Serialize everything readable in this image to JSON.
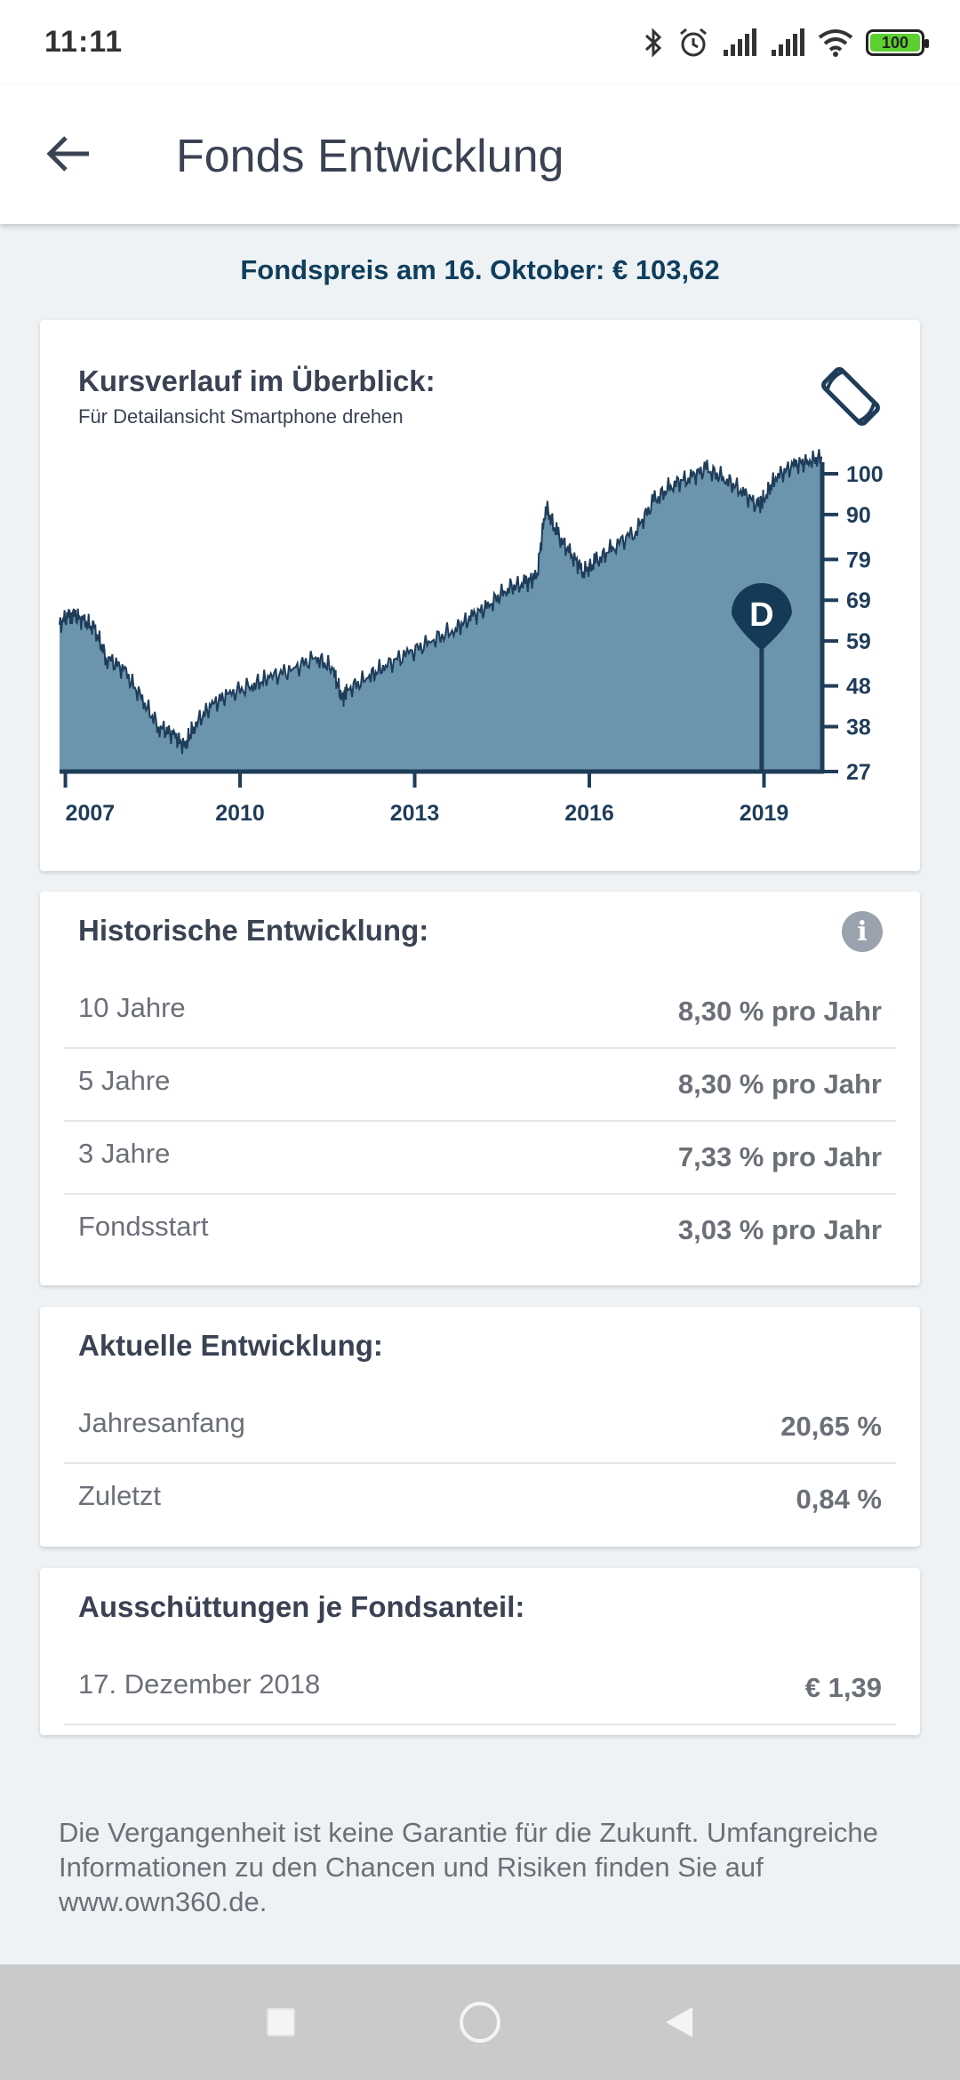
{
  "status": {
    "time": "11:11",
    "battery": "100"
  },
  "header": {
    "title": "Fonds Entwicklung"
  },
  "price_line": "Fondspreis am 16. Oktober: € 103,62",
  "overview": {
    "title": "Kursverlauf im Überblick:",
    "subtitle": "Für Detailansicht Smartphone drehen",
    "marker_label": "D"
  },
  "chart_data": {
    "type": "area",
    "x_ticks": [
      "2007",
      "2010",
      "2013",
      "2016",
      "2019"
    ],
    "y_ticks": [
      "100",
      "90",
      "79",
      "69",
      "59",
      "48",
      "38",
      "27"
    ],
    "ylim": [
      27,
      105
    ],
    "xlim": [
      2006.9,
      2020.0
    ],
    "marker": {
      "label": "D",
      "x": 2018.96
    },
    "color": "#6b95ad",
    "line_color": "#1f3d5a",
    "x": [
      2006.9,
      2007.1,
      2007.3,
      2007.5,
      2007.7,
      2008.0,
      2008.3,
      2008.6,
      2008.85,
      2009.05,
      2009.2,
      2009.5,
      2009.8,
      2010.2,
      2010.5,
      2010.9,
      2011.3,
      2011.6,
      2011.75,
      2011.85,
      2012.2,
      2012.5,
      2012.9,
      2013.3,
      2013.7,
      2014.0,
      2014.3,
      2014.6,
      2014.9,
      2015.1,
      2015.25,
      2015.45,
      2015.7,
      2015.9,
      2016.1,
      2016.4,
      2016.8,
      2017.1,
      2017.4,
      2017.7,
      2018.0,
      2018.3,
      2018.6,
      2018.9,
      2019.0,
      2019.2,
      2019.5,
      2019.75,
      2020.0
    ],
    "y": [
      63,
      66,
      64,
      62,
      55,
      52,
      45,
      38,
      36,
      33,
      38,
      43,
      46,
      48,
      50,
      52,
      55,
      52,
      45,
      47,
      50,
      53,
      56,
      59,
      62,
      65,
      68,
      72,
      73,
      75,
      92,
      85,
      80,
      76,
      78,
      82,
      86,
      93,
      97,
      99,
      101,
      99,
      96,
      92,
      94,
      99,
      102,
      103,
      104
    ]
  },
  "historical": {
    "title": "Historische Entwicklung:",
    "rows": [
      {
        "label": "10 Jahre",
        "value": "8,30 % pro Jahr"
      },
      {
        "label": "5 Jahre",
        "value": "8,30 % pro Jahr"
      },
      {
        "label": "3 Jahre",
        "value": "7,33 % pro Jahr"
      },
      {
        "label": "Fondsstart",
        "value": "3,03 % pro Jahr"
      }
    ]
  },
  "current": {
    "title": "Aktuelle Entwicklung:",
    "rows": [
      {
        "label": "Jahresanfang",
        "value": "20,65 %"
      },
      {
        "label": "Zuletzt",
        "value": "0,84 %"
      }
    ]
  },
  "distributions": {
    "title": "Ausschüttungen je Fondsanteil:",
    "rows": [
      {
        "label": "17. Dezember 2018",
        "value": "€ 1,39"
      }
    ]
  },
  "disclaimer": "Die Vergangenheit ist keine Garantie für die Zukunft. Umfangreiche Informationen zu den Chancen und Risiken finden Sie auf www.own360.de."
}
